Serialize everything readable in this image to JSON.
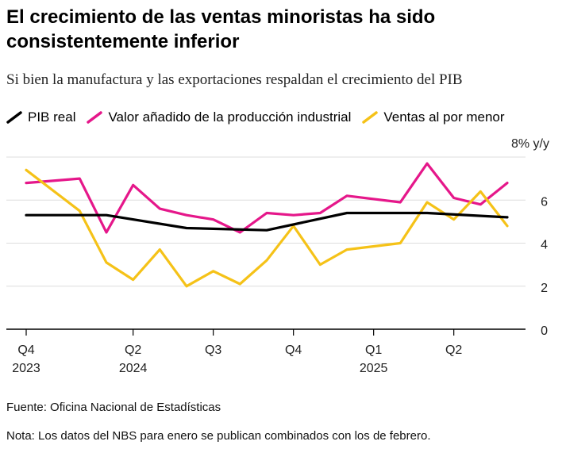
{
  "title": "El crecimiento de las ventas minoristas ha sido consistentemente inferior",
  "subtitle": "Si bien la manufactura y las exportaciones respaldan el crecimiento del PIB",
  "source": "Fuente: Oficina Nacional de Estadísticas",
  "note": "Nota: Los datos del NBS para enero se publican combinados con los de febrero.",
  "colors": {
    "gdp": "#000000",
    "industrial": "#e5178a",
    "retail": "#f5c218",
    "grid": "#dddddd",
    "axis": "#000000"
  },
  "chart_data": {
    "type": "line",
    "title": "El crecimiento de las ventas minoristas ha sido consistentemente inferior",
    "subtitle": "Si bien la manufactura y las exportaciones respaldan el crecimiento del PIB",
    "ylabel": "",
    "unit_label": "8% y/y",
    "ylim": [
      0,
      8
    ],
    "yticks": [
      0,
      2,
      4,
      6
    ],
    "y_axis_side": "right",
    "grid": true,
    "legend_position": "top",
    "x_tick_labels": [
      {
        "label": "Q4",
        "year": "2023",
        "index": 0
      },
      {
        "label": "Q2",
        "year": "2024",
        "index": 4
      },
      {
        "label": "Q3",
        "year": "",
        "index": 7
      },
      {
        "label": "Q4",
        "year": "",
        "index": 10
      },
      {
        "label": "Q1",
        "year": "2025",
        "index": 13
      },
      {
        "label": "Q2",
        "year": "",
        "index": 16
      }
    ],
    "x": [
      "2023-12",
      "2024-01",
      "2024-02",
      "2024-03",
      "2024-04",
      "2024-05",
      "2024-06",
      "2024-07",
      "2024-08",
      "2024-09",
      "2024-10",
      "2024-11",
      "2024-12",
      "2025-01",
      "2025-02",
      "2025-03",
      "2025-04",
      "2025-05",
      "2025-06"
    ],
    "series": [
      {
        "name": "PIB real",
        "color": "#000000",
        "points": [
          [
            0,
            5.3
          ],
          [
            3,
            5.3
          ],
          [
            6,
            4.7
          ],
          [
            9,
            4.6
          ],
          [
            12,
            5.4
          ],
          [
            15,
            5.4
          ],
          [
            18,
            5.2
          ]
        ]
      },
      {
        "name": "Valor añadido de la producción industrial",
        "color": "#e5178a",
        "points": [
          [
            0,
            6.8
          ],
          [
            2,
            7.0
          ],
          [
            3,
            4.5
          ],
          [
            4,
            6.7
          ],
          [
            5,
            5.6
          ],
          [
            6,
            5.3
          ],
          [
            7,
            5.1
          ],
          [
            8,
            4.5
          ],
          [
            9,
            5.4
          ],
          [
            10,
            5.3
          ],
          [
            11,
            5.4
          ],
          [
            12,
            6.2
          ],
          [
            14,
            5.9
          ],
          [
            15,
            7.7
          ],
          [
            16,
            6.1
          ],
          [
            17,
            5.8
          ],
          [
            18,
            6.8
          ]
        ]
      },
      {
        "name": "Ventas al por menor",
        "color": "#f5c218",
        "points": [
          [
            0,
            7.4
          ],
          [
            2,
            5.5
          ],
          [
            3,
            3.1
          ],
          [
            4,
            2.3
          ],
          [
            5,
            3.7
          ],
          [
            6,
            2.0
          ],
          [
            7,
            2.7
          ],
          [
            8,
            2.1
          ],
          [
            9,
            3.2
          ],
          [
            10,
            4.8
          ],
          [
            11,
            3.0
          ],
          [
            12,
            3.7
          ],
          [
            14,
            4.0
          ],
          [
            15,
            5.9
          ],
          [
            16,
            5.1
          ],
          [
            17,
            6.4
          ],
          [
            18,
            4.8
          ]
        ]
      }
    ]
  }
}
